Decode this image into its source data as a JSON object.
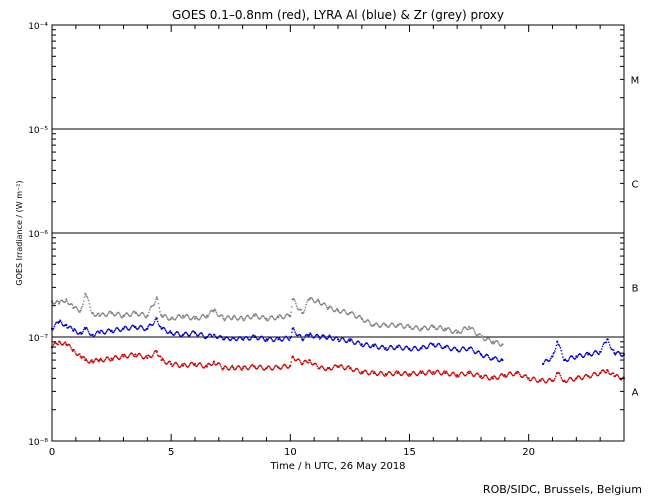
{
  "chart_data": {
    "type": "scatter",
    "title": "GOES 0.1–0.8nm (red), LYRA Al (blue) & Zr (grey) proxy",
    "xlabel": "Time / h UTC, 26 May 2018",
    "ylabel": "GOES Irradiance / (W m⁻²)",
    "xlim": [
      0,
      24
    ],
    "ylim": [
      1e-08,
      0.0001
    ],
    "yscale": "log",
    "x_ticks": [
      {
        "value": 0,
        "label": "0"
      },
      {
        "value": 5,
        "label": "5"
      },
      {
        "value": 10,
        "label": "10"
      },
      {
        "value": 15,
        "label": "15"
      },
      {
        "value": 20,
        "label": "20"
      }
    ],
    "y_ticks": [
      {
        "value": 1e-08,
        "label": "10⁻⁸"
      },
      {
        "value": 1e-07,
        "label": "10⁻⁷"
      },
      {
        "value": 1e-06,
        "label": "10⁻⁶"
      },
      {
        "value": 1e-05,
        "label": "10⁻⁵"
      },
      {
        "value": 0.0001,
        "label": "10⁻⁴"
      }
    ],
    "flare_class_lines": [
      1e-07,
      1e-06,
      1e-05
    ],
    "flare_classes": [
      {
        "label": "M",
        "value": 3e-05
      },
      {
        "label": "C",
        "value": 3e-06
      },
      {
        "label": "B",
        "value": 3e-07
      },
      {
        "label": "A",
        "value": 3e-08
      }
    ],
    "series": [
      {
        "color": "#808080",
        "x": [
          0,
          0.3,
          0.6,
          0.9,
          1.2,
          1.4,
          1.7,
          2.0,
          2.5,
          3.0,
          3.5,
          4.0,
          4.4,
          4.6,
          5.0,
          5.5,
          6.0,
          6.5,
          6.8,
          7.2,
          7.6,
          8.0,
          8.5,
          9.0,
          9.5,
          10.0,
          10.1,
          10.5,
          10.8,
          11.2,
          11.6,
          12.0,
          12.5,
          13.0,
          13.5,
          14.0,
          14.5,
          15.0,
          15.5,
          16.0,
          16.5,
          17.0,
          17.5,
          18.0,
          18.5,
          18.9
        ],
        "y": [
          2.2e-07,
          2.1e-07,
          2.3e-07,
          1.9e-07,
          1.8e-07,
          2.6e-07,
          1.7e-07,
          1.6e-07,
          1.7e-07,
          1.6e-07,
          1.7e-07,
          1.6e-07,
          2.4e-07,
          1.6e-07,
          1.5e-07,
          1.6e-07,
          1.5e-07,
          1.6e-07,
          1.8e-07,
          1.5e-07,
          1.55e-07,
          1.5e-07,
          1.6e-07,
          1.5e-07,
          1.55e-07,
          1.6e-07,
          2.3e-07,
          1.7e-07,
          2.3e-07,
          2.2e-07,
          1.9e-07,
          1.8e-07,
          1.7e-07,
          1.5e-07,
          1.3e-07,
          1.3e-07,
          1.3e-07,
          1.25e-07,
          1.2e-07,
          1.25e-07,
          1.2e-07,
          1.1e-07,
          1.25e-07,
          1e-07,
          9e-08,
          8.5e-08
        ]
      },
      {
        "color": "#0000cc",
        "x": [
          0,
          0.3,
          0.6,
          0.9,
          1.2,
          1.4,
          1.7,
          2.0,
          2.5,
          3.0,
          3.5,
          4.0,
          4.4,
          4.6,
          5.0,
          5.5,
          6.0,
          6.5,
          6.8,
          7.2,
          7.6,
          8.0,
          8.5,
          9.0,
          9.5,
          10.0,
          10.1,
          10.5,
          10.8,
          11.2,
          11.6,
          12.0,
          12.5,
          13.0,
          13.5,
          14.0,
          14.5,
          15.0,
          15.5,
          16.0,
          16.5,
          17.0,
          17.5,
          18.0,
          18.5,
          18.9,
          20.6,
          21.0,
          21.2,
          21.5,
          22.0,
          22.5,
          23.0,
          23.3,
          23.6,
          24.0
        ],
        "y": [
          1.2e-07,
          1.4e-07,
          1.3e-07,
          1.15e-07,
          1.1e-07,
          1.2e-07,
          1.05e-07,
          1.1e-07,
          1.15e-07,
          1.2e-07,
          1.25e-07,
          1.2e-07,
          1.5e-07,
          1.2e-07,
          1.1e-07,
          1.05e-07,
          1.1e-07,
          1e-07,
          1.05e-07,
          9.5e-08,
          9.8e-08,
          9.5e-08,
          1e-07,
          9.5e-08,
          9.5e-08,
          9.8e-08,
          1.2e-07,
          9.5e-08,
          1.05e-07,
          1e-07,
          1e-07,
          9.5e-08,
          9.2e-08,
          8.5e-08,
          8.2e-08,
          7.8e-08,
          8e-08,
          7.7e-08,
          7.8e-08,
          8.5e-08,
          8e-08,
          7.5e-08,
          7.8e-08,
          6.8e-08,
          6.2e-08,
          6e-08,
          5.5e-08,
          6.5e-08,
          9e-08,
          6e-08,
          6.5e-08,
          6.8e-08,
          7.2e-08,
          9.5e-08,
          7e-08,
          6.8e-08
        ]
      },
      {
        "color": "#cc0000",
        "x": [
          0,
          0.3,
          0.6,
          0.9,
          1.2,
          1.4,
          1.7,
          2.0,
          2.5,
          3.0,
          3.5,
          4.0,
          4.4,
          4.6,
          5.0,
          5.5,
          6.0,
          6.5,
          6.8,
          7.2,
          7.6,
          8.0,
          8.5,
          9.0,
          9.5,
          10.0,
          10.1,
          10.5,
          10.8,
          11.2,
          11.6,
          12.0,
          12.5,
          13.0,
          13.5,
          14.0,
          14.5,
          15.0,
          15.5,
          16.0,
          16.5,
          17.0,
          17.5,
          18.0,
          18.5,
          19.0,
          19.5,
          20.0,
          20.5,
          21.0,
          21.2,
          21.5,
          22.0,
          22.5,
          23.0,
          23.3,
          23.6,
          24.0
        ],
        "y": [
          8e-08,
          9e-08,
          8.5e-08,
          7.5e-08,
          6.5e-08,
          6e-08,
          5.8e-08,
          6e-08,
          6.2e-08,
          6.5e-08,
          6.8e-08,
          6.3e-08,
          7.2e-08,
          6e-08,
          5.5e-08,
          5.3e-08,
          5.5e-08,
          5.2e-08,
          5.8e-08,
          5e-08,
          5.1e-08,
          5e-08,
          5.2e-08,
          5e-08,
          5.1e-08,
          5.3e-08,
          6.5e-08,
          5.5e-08,
          6e-08,
          5e-08,
          5e-08,
          5.2e-08,
          5e-08,
          4.6e-08,
          4.5e-08,
          4.4e-08,
          4.5e-08,
          4.4e-08,
          4.5e-08,
          4.6e-08,
          4.5e-08,
          4.3e-08,
          4.5e-08,
          4.2e-08,
          4e-08,
          4.3e-08,
          4.5e-08,
          4e-08,
          3.8e-08,
          3.8e-08,
          4.5e-08,
          3.8e-08,
          4e-08,
          4.2e-08,
          4.5e-08,
          4.8e-08,
          4.2e-08,
          4e-08
        ]
      }
    ]
  },
  "footer": {
    "credit": "ROB/SIDC, Brussels, Belgium"
  }
}
